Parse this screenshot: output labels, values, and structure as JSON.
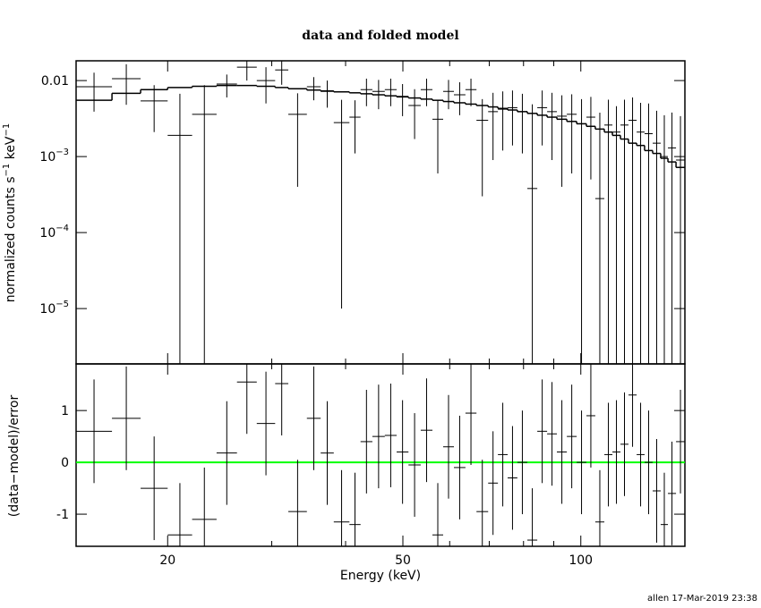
{
  "chart_data": [
    {
      "type": "spectrum",
      "title": "data and folded model",
      "ylabel_parts": [
        "normalized counts s",
        "−1",
        " keV",
        "−1"
      ],
      "xscale": "log",
      "yscale": "log",
      "xlim": [
        14,
        150
      ],
      "ylim": [
        1.87e-06,
        0.0182
      ],
      "xticks": [
        20,
        50,
        100
      ],
      "xminor_ticks": [
        30,
        40,
        60,
        70,
        80,
        90
      ],
      "yticks": [
        0.01,
        {
          "value": 0.001,
          "label": "10",
          "exponent": "−3"
        },
        {
          "value": 0.0001,
          "label": "10",
          "exponent": "−4"
        },
        {
          "value": 1e-05,
          "label": "10",
          "exponent": "−5"
        }
      ],
      "color": "#000000",
      "model_color": "#000000",
      "bin_edges": [
        14,
        16.1,
        18.0,
        20.0,
        22.0,
        24.2,
        26.2,
        28.3,
        30.4,
        32.0,
        34.4,
        36.3,
        38.2,
        40.6,
        42.4,
        44.4,
        46.6,
        48.8,
        51.1,
        53.6,
        56.1,
        58.5,
        61.0,
        63.8,
        66.6,
        69.7,
        72.4,
        75.2,
        78.1,
        81.2,
        84.4,
        87.7,
        91.1,
        94.7,
        98.4,
        102.2,
        105.8,
        109.6,
        113.1,
        116.7,
        120.4,
        124.3,
        128.2,
        132.3,
        136.5,
        140.4,
        144.9,
        150
      ],
      "values": [
        0.0083,
        0.0106,
        0.0054,
        0.0019,
        0.0036,
        0.009,
        0.015,
        0.01,
        0.0138,
        0.0036,
        0.0083,
        0.0072,
        0.0028,
        0.0033,
        0.0076,
        0.0072,
        0.0076,
        0.0062,
        0.0047,
        0.0076,
        0.0031,
        0.0072,
        0.0065,
        0.0076,
        0.003,
        0.0039,
        0.0042,
        0.0044,
        0.0039,
        0.00038,
        0.0044,
        0.0039,
        0.0034,
        0.0036,
        0.0027,
        0.0033,
        0.00028,
        0.0026,
        0.0021,
        0.0026,
        0.003,
        0.0021,
        0.002,
        0.0015,
        0.001,
        0.0013,
        0.0009
      ],
      "errors": [
        0.0044,
        0.0058,
        0.0033,
        0.0048,
        0.0051,
        0.003,
        0.005,
        0.005,
        0.005,
        0.0032,
        0.0028,
        0.0028,
        0.00279,
        0.0022,
        0.003,
        0.003,
        0.003,
        0.0028,
        0.003,
        0.003,
        0.0025,
        0.003,
        0.003,
        0.003,
        0.0027,
        0.003,
        0.003,
        0.003,
        0.0028,
        0.0045,
        0.003,
        0.003,
        0.003,
        0.003,
        0.003,
        0.0028,
        0.0035,
        0.003,
        0.0025,
        0.003,
        0.003,
        0.003,
        0.003,
        0.0025,
        0.0025,
        0.0025,
        0.0025
      ],
      "model": [
        0.0055,
        0.0068,
        0.0076,
        0.0081,
        0.0084,
        0.0086,
        0.0086,
        0.0084,
        0.0081,
        0.0078,
        0.0075,
        0.0073,
        0.0071,
        0.0069,
        0.0067,
        0.0065,
        0.0063,
        0.0061,
        0.0059,
        0.0057,
        0.0055,
        0.0053,
        0.0051,
        0.0049,
        0.0047,
        0.0045,
        0.0043,
        0.0041,
        0.0039,
        0.0037,
        0.0035,
        0.0033,
        0.0031,
        0.0029,
        0.0027,
        0.0025,
        0.0023,
        0.0021,
        0.0019,
        0.0017,
        0.0015,
        0.0014,
        0.0012,
        0.0011,
        0.00095,
        0.00085,
        0.00072
      ]
    },
    {
      "type": "residual",
      "ylabel": "(data−model)/error",
      "xlabel": "Energy (keV)",
      "xscale": "log",
      "xlim": [
        14,
        150
      ],
      "ylim": [
        -1.62,
        1.9
      ],
      "xticks": [
        20,
        50,
        100
      ],
      "xminor_ticks": [
        30,
        40,
        60,
        70,
        80,
        90
      ],
      "yticks": [
        -1,
        0,
        1
      ],
      "color": "#000000",
      "values": [
        0.6,
        0.85,
        -0.5,
        -1.4,
        -1.1,
        0.18,
        1.55,
        0.75,
        1.52,
        -0.95,
        0.85,
        0.18,
        -1.15,
        -1.2,
        0.4,
        0.5,
        0.52,
        0.2,
        -0.05,
        0.62,
        -1.4,
        0.3,
        -0.1,
        0.95,
        -0.95,
        -0.4,
        0.15,
        -0.3,
        0.0,
        -1.5,
        0.6,
        0.55,
        0.2,
        0.5,
        0.0,
        0.9,
        -1.15,
        0.15,
        0.2,
        0.35,
        1.3,
        0.15,
        0.0,
        -0.55,
        -1.2,
        -0.6,
        0.4
      ],
      "errors": [
        1,
        1,
        1,
        1,
        1,
        1,
        1,
        1,
        1,
        1,
        1,
        1,
        1,
        1,
        1,
        1,
        1,
        1,
        1,
        1,
        1,
        1,
        1,
        1,
        1,
        1,
        1,
        1,
        1,
        1,
        1,
        1,
        1,
        1,
        1,
        1,
        1,
        1,
        1,
        1,
        1,
        1,
        1,
        1,
        1,
        1,
        1
      ],
      "reference_line": {
        "value": 0,
        "color": "#00ff00"
      }
    }
  ],
  "footer": "allen 17-Mar-2019 23:38"
}
